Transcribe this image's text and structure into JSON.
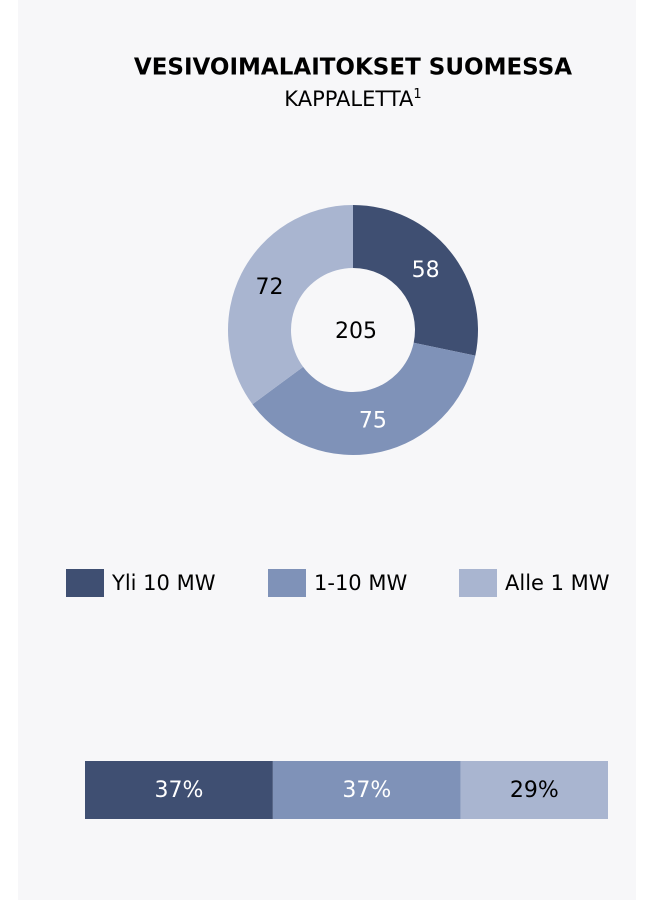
{
  "chart_data": [
    {
      "type": "donut",
      "title": "VESIVOIMALAITOKSET SUOMESSA",
      "subtitle": "KAPPALETTA",
      "subtitle_superscript": "1",
      "center_value": 205,
      "categories": [
        "Yli 10 MW",
        "1-10 MW",
        "Alle 1 MW"
      ],
      "values": [
        58,
        75,
        72
      ],
      "colors": [
        "#3f4f72",
        "#7f92b8",
        "#a9b5d0"
      ],
      "label_colors": [
        "#ffffff",
        "#ffffff",
        "#000000"
      ],
      "legend": "bottom"
    },
    {
      "type": "stacked-bar",
      "values": [
        37,
        37,
        29
      ],
      "value_labels": [
        "37%",
        "37%",
        "29%"
      ],
      "colors": [
        "#3f4f72",
        "#7f92b8",
        "#a9b5d0"
      ],
      "label_colors": [
        "#ffffff",
        "#ffffff",
        "#000000"
      ]
    }
  ]
}
